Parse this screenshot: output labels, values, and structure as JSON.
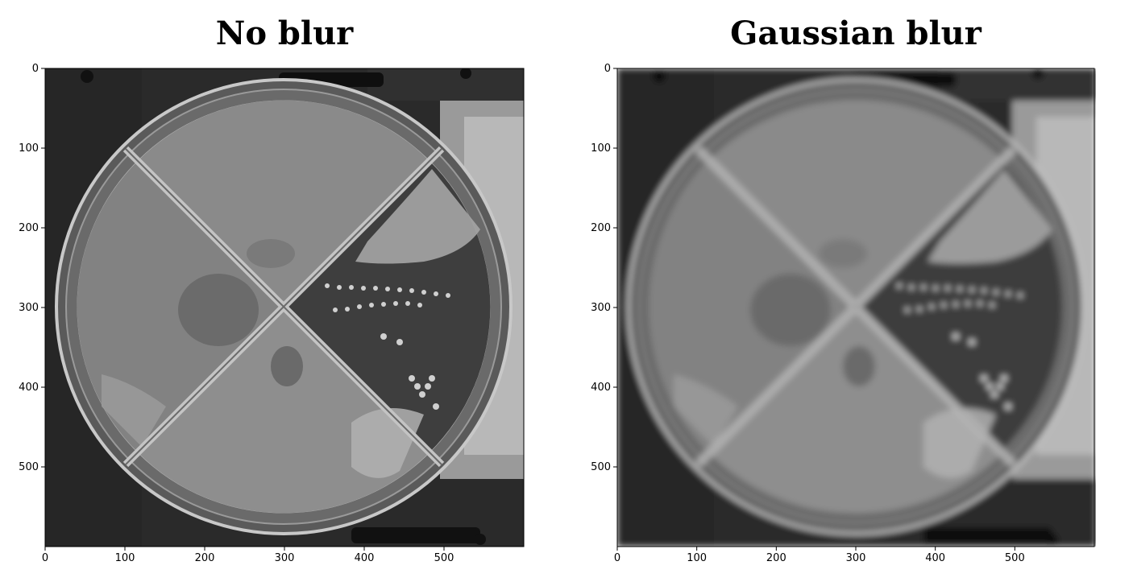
{
  "panels": [
    {
      "title": "No blur",
      "x_ticks": [
        "0",
        "100",
        "200",
        "300",
        "400",
        "500"
      ],
      "y_ticks": [
        "0",
        "100",
        "200",
        "300",
        "400",
        "500"
      ],
      "image": "petri-dish-sharp"
    },
    {
      "title": "Gaussian blur",
      "x_ticks": [
        "0",
        "100",
        "200",
        "300",
        "400",
        "500"
      ],
      "y_ticks": [
        "0",
        "100",
        "200",
        "300",
        "400",
        "500"
      ],
      "image": "petri-dish-blurred"
    }
  ],
  "axis_range": [
    0,
    600
  ]
}
